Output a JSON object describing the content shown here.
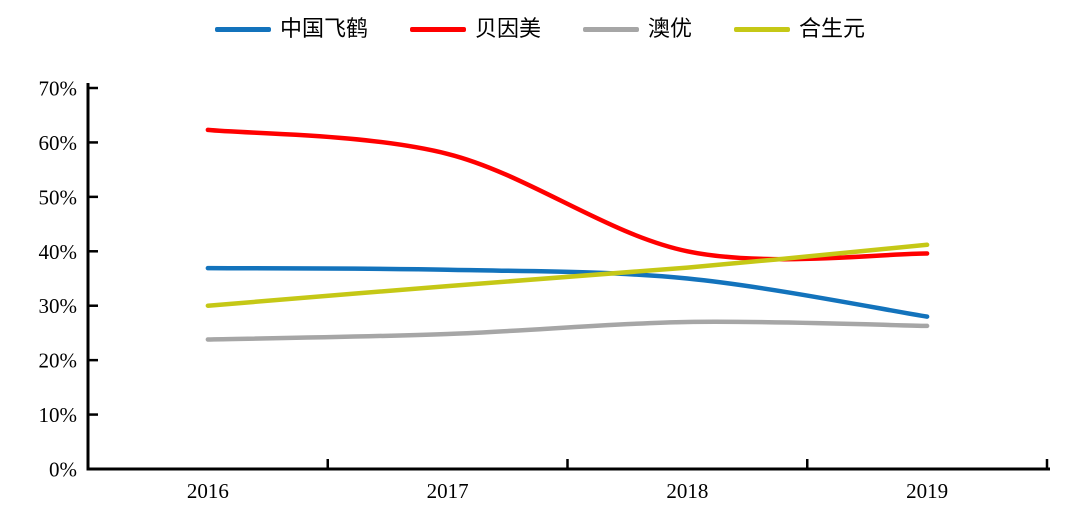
{
  "chart_data": {
    "type": "line",
    "title": "",
    "xlabel": "",
    "ylabel": "",
    "x": [
      "2016",
      "2017",
      "2018",
      "2019"
    ],
    "ylim": [
      0,
      70
    ],
    "ytick_step": 10,
    "ytick_format": "percent",
    "ytick_labels": [
      "0%",
      "10%",
      "20%",
      "30%",
      "40%",
      "50%",
      "60%",
      "70%"
    ],
    "grid": false,
    "legend_position": "top",
    "line_smoothing": true,
    "axis_color": "#000000",
    "background_color": "#ffffff",
    "series": [
      {
        "name": "中国飞鹤",
        "color": "#1373BC",
        "values": [
          36.9,
          36.6,
          35.0,
          28.0
        ]
      },
      {
        "name": "贝因美",
        "color": "#FF0000",
        "values": [
          62.3,
          57.9,
          40.0,
          39.6
        ]
      },
      {
        "name": "澳优",
        "color": "#A6A6A6",
        "values": [
          23.8,
          24.8,
          27.0,
          26.3
        ]
      },
      {
        "name": "合生元",
        "color": "#C5C816",
        "values": [
          30.0,
          33.6,
          37.0,
          41.2
        ]
      }
    ]
  }
}
